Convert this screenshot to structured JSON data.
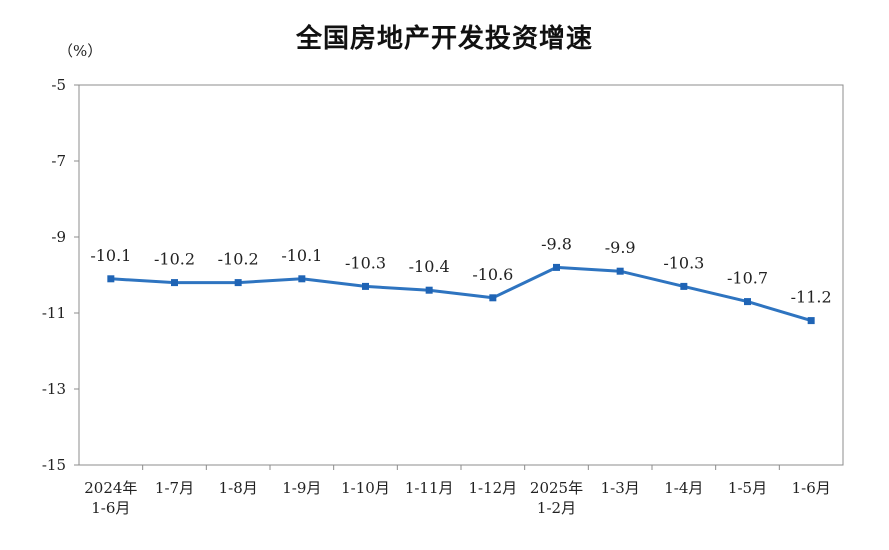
{
  "chart_data": {
    "type": "line",
    "title": "全国房地产开发投资增速",
    "unit": "（%）",
    "categories": [
      [
        "2024年",
        "1-6月"
      ],
      [
        "1-7月"
      ],
      [
        "1-8月"
      ],
      [
        "1-9月"
      ],
      [
        "1-10月"
      ],
      [
        "1-11月"
      ],
      [
        "1-12月"
      ],
      [
        "2025年",
        "1-2月"
      ],
      [
        "1-3月"
      ],
      [
        "1-4月"
      ],
      [
        "1-5月"
      ],
      [
        "1-6月"
      ]
    ],
    "series": [
      {
        "values": [
          -10.1,
          -10.2,
          -10.2,
          -10.1,
          -10.3,
          -10.4,
          -10.6,
          -9.8,
          -9.9,
          -10.3,
          -10.7,
          -11.2
        ],
        "labels": [
          "-10.1",
          "-10.2",
          "-10.2",
          "-10.1",
          "-10.3",
          "-10.4",
          "-10.6",
          "-9.8",
          "-9.9",
          "-10.3",
          "-10.7",
          "-11.2"
        ]
      }
    ],
    "ylim": [
      -15,
      -5
    ],
    "yticks": [
      -5,
      -7,
      -9,
      -11,
      -13,
      -15
    ],
    "grid": false,
    "line_color": "#2e74c0"
  }
}
